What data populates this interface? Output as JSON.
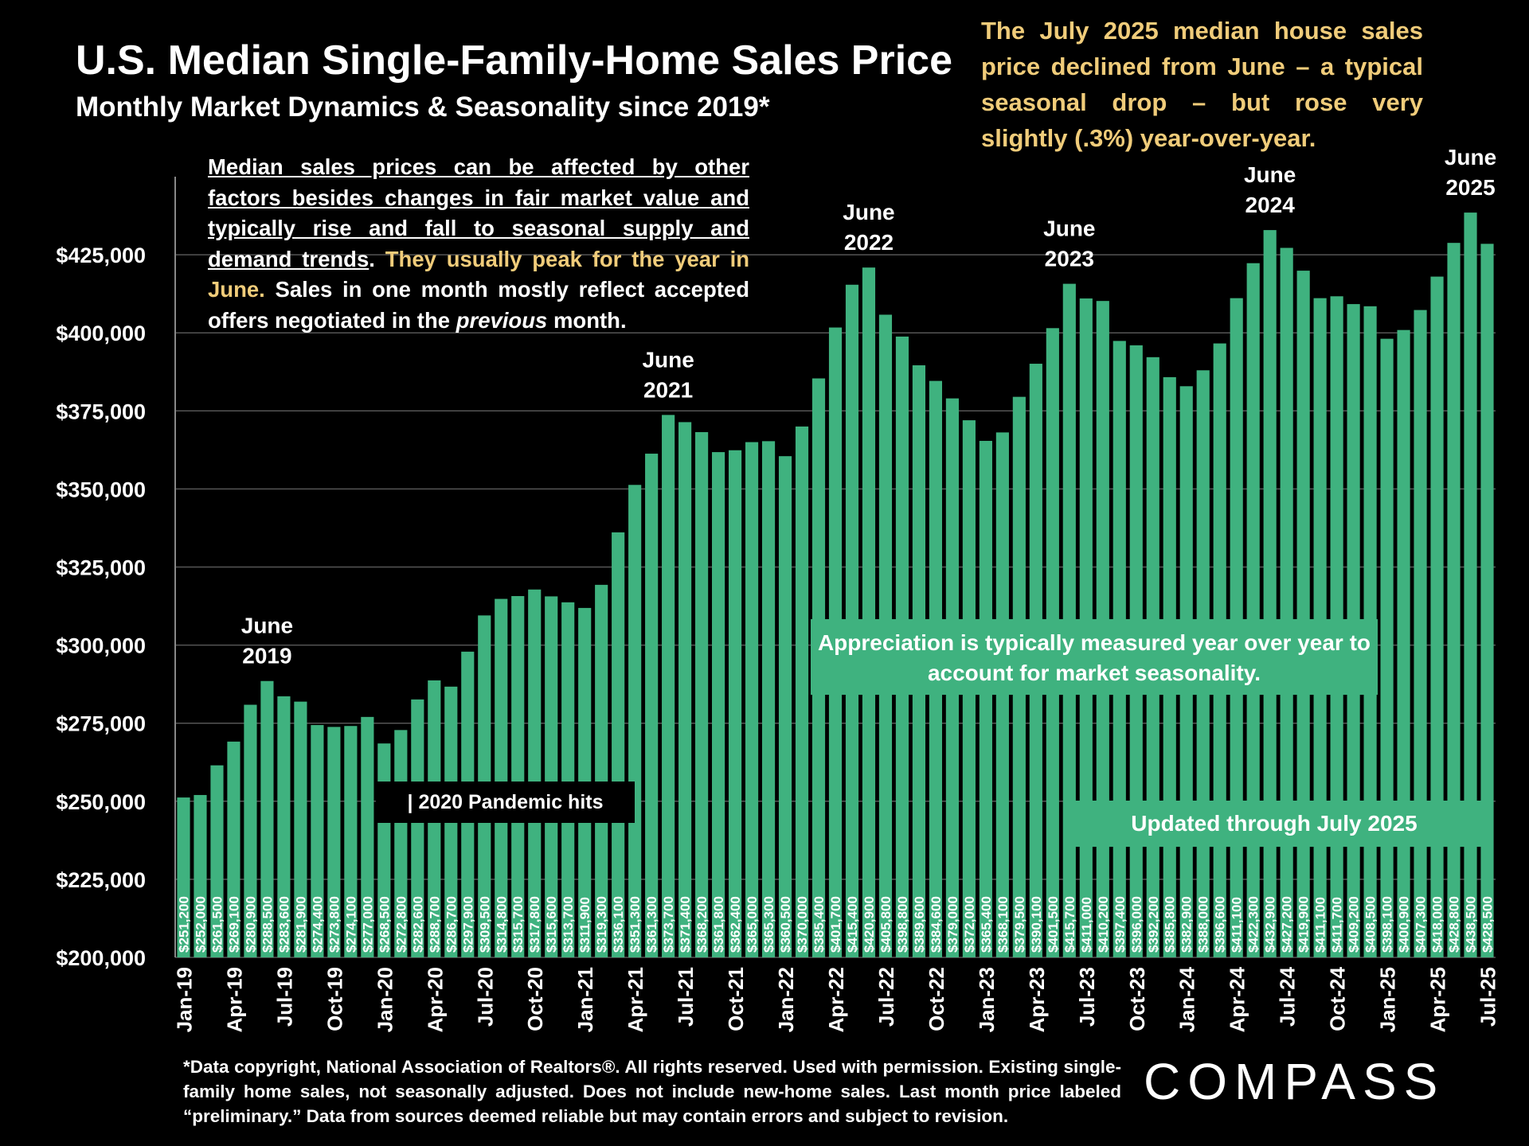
{
  "header": {
    "title": "U.S. Median Single-Family-Home Sales Price",
    "subtitle": "Monthly Market Dynamics & Seasonality since 2019*"
  },
  "headline_note": "The July  2025 median house sales price declined from June – a typical seasonal drop – but rose very slightly (.3%) year-over-year.",
  "side_note": {
    "underlined": "Median sales prices can be affected by other factors besides changes in fair market value and typically rise and fall to seasonal supply and demand trends",
    "period": ".",
    "highlight": "They usually peak for the year in June.",
    "part1": "Sales in one month mostly reflect accepted offers negotiated in the",
    "italic": "previous",
    "part2": "month."
  },
  "appreciation_note": "Appreciation is typically measured year over year to account for market seasonality.",
  "updated_note": "Updated through July 2025",
  "pandemic_note": "| 2020 Pandemic hits",
  "footnote": "*Data copyright, National Association of Realtors®. All rights reserved. Used with permission. Existing single-family home sales, not seasonally adjusted. Does not include new-home sales. Last month price labeled “preliminary.” Data from sources deemed reliable but may contain errors and subject to revision.",
  "logo": "COMPASS",
  "colors": {
    "bar": "#3fb27f",
    "background": "#000000",
    "highlight": "#f0cc7a",
    "grid": "#555555"
  },
  "chart_data": {
    "type": "bar",
    "title": "U.S. Median Single-Family-Home Sales Price",
    "subtitle": "Monthly Market Dynamics & Seasonality since 2019*",
    "ylim": [
      200000,
      450000
    ],
    "y_ticks": [
      200000,
      225000,
      250000,
      275000,
      300000,
      325000,
      350000,
      375000,
      400000,
      425000
    ],
    "y_tick_labels": [
      "$200,000",
      "$225,000",
      "$250,000",
      "$275,000",
      "$300,000",
      "$325,000",
      "$350,000",
      "$375,000",
      "$400,000",
      "$425,000"
    ],
    "grid": true,
    "categories": [
      "Jan-19",
      "Feb-19",
      "Mar-19",
      "Apr-19",
      "May-19",
      "Jun-19",
      "Jul-19",
      "Aug-19",
      "Sep-19",
      "Oct-19",
      "Nov-19",
      "Dec-19",
      "Jan-20",
      "Feb-20",
      "Mar-20",
      "Apr-20",
      "May-20",
      "Jun-20",
      "Jul-20",
      "Aug-20",
      "Sep-20",
      "Oct-20",
      "Nov-20",
      "Dec-20",
      "Jan-21",
      "Feb-21",
      "Mar-21",
      "Apr-21",
      "May-21",
      "Jun-21",
      "Jul-21",
      "Aug-21",
      "Sep-21",
      "Oct-21",
      "Nov-21",
      "Dec-21",
      "Jan-22",
      "Feb-22",
      "Mar-22",
      "Apr-22",
      "May-22",
      "Jun-22",
      "Jul-22",
      "Aug-22",
      "Sep-22",
      "Oct-22",
      "Nov-22",
      "Dec-22",
      "Jan-23",
      "Feb-23",
      "Mar-23",
      "Apr-23",
      "May-23",
      "Jun-23",
      "Jul-23",
      "Aug-23",
      "Sep-23",
      "Oct-23",
      "Nov-23",
      "Dec-23",
      "Jan-24",
      "Feb-24",
      "Mar-24",
      "Apr-24",
      "May-24",
      "Jun-24",
      "Jul-24",
      "Aug-24",
      "Sep-24",
      "Oct-24",
      "Nov-24",
      "Dec-24",
      "Jan-25",
      "Feb-25",
      "Mar-25",
      "Apr-25",
      "May-25",
      "Jun-25",
      "Jul-25"
    ],
    "x_tick_labels": [
      "Jan-19",
      "Apr-19",
      "Jul-19",
      "Oct-19",
      "Jan-20",
      "Apr-20",
      "Jul-20",
      "Oct-20",
      "Jan-21",
      "Apr-21",
      "Jul-21",
      "Oct-21",
      "Jan-22",
      "Apr-22",
      "Jul-22",
      "Oct-22",
      "Jan-23",
      "Apr-23",
      "Jul-23",
      "Oct-23",
      "Jan-24",
      "Apr-24",
      "Jul-24",
      "Oct-24",
      "Jan-25",
      "Apr-25",
      "Jul-25"
    ],
    "values": [
      251200,
      252000,
      261500,
      269100,
      280900,
      288500,
      283600,
      281900,
      274400,
      273800,
      274100,
      277000,
      268500,
      272800,
      282600,
      288700,
      286700,
      297900,
      309500,
      314800,
      315700,
      317800,
      315600,
      313700,
      311900,
      319300,
      336100,
      351300,
      361300,
      373700,
      371400,
      368200,
      361800,
      362400,
      365000,
      365300,
      360500,
      370000,
      385400,
      401700,
      415400,
      420900,
      405800,
      398800,
      389600,
      384600,
      379000,
      372000,
      365400,
      368100,
      379500,
      390100,
      401500,
      415700,
      411000,
      410200,
      397400,
      396000,
      392200,
      385800,
      382900,
      388000,
      396600,
      411100,
      422300,
      432900,
      427200,
      419900,
      411100,
      411700,
      409200,
      408500,
      398100,
      400900,
      407300,
      418000,
      428800,
      438500,
      428500
    ],
    "value_labels": [
      "$251,200",
      "$252,000",
      "$261,500",
      "$269,100",
      "$280,900",
      "$288,500",
      "$283,600",
      "$281,900",
      "$274,400",
      "$273,800",
      "$274,100",
      "$277,000",
      "$268,500",
      "$272,800",
      "$282,600",
      "$288,700",
      "$286,700",
      "$297,900",
      "$309,500",
      "$314,800",
      "$315,700",
      "$317,800",
      "$315,600",
      "$313,700",
      "$311,900",
      "$319,300",
      "$336,100",
      "$351,300",
      "$361,300",
      "$373,700",
      "$371,400",
      "$368,200",
      "$361,800",
      "$362,400",
      "$365,000",
      "$365,300",
      "$360,500",
      "$370,000",
      "$385,400",
      "$401,700",
      "$415,400",
      "$420,900",
      "$405,800",
      "$398,800",
      "$389,600",
      "$384,600",
      "$379,000",
      "$372,000",
      "$365,400",
      "$368,100",
      "$379,500",
      "$390,100",
      "$401,500",
      "$415,700",
      "$411,000",
      "$410,200",
      "$397,400",
      "$396,000",
      "$392,200",
      "$385,800",
      "$382,900",
      "$388,000",
      "$396,600",
      "$411,100",
      "$422,300",
      "$432,900",
      "$427,200",
      "$419,900",
      "$411,100",
      "$411,700",
      "$409,200",
      "$408,500",
      "$398,100",
      "$400,900",
      "$407,300",
      "$418,000",
      "$428,800",
      "$438,500",
      "$428,500"
    ],
    "annotations": [
      {
        "text": [
          "June",
          "2019"
        ],
        "category": "Jun-19"
      },
      {
        "text": [
          "June",
          "2021"
        ],
        "category": "Jun-21"
      },
      {
        "text": [
          "June",
          "2022"
        ],
        "category": "Jun-22"
      },
      {
        "text": [
          "June",
          "2023"
        ],
        "category": "Jun-23"
      },
      {
        "text": [
          "June",
          "2024"
        ],
        "category": "Jun-24"
      },
      {
        "text": [
          "June",
          "2025"
        ],
        "category": "Jun-25"
      }
    ]
  }
}
